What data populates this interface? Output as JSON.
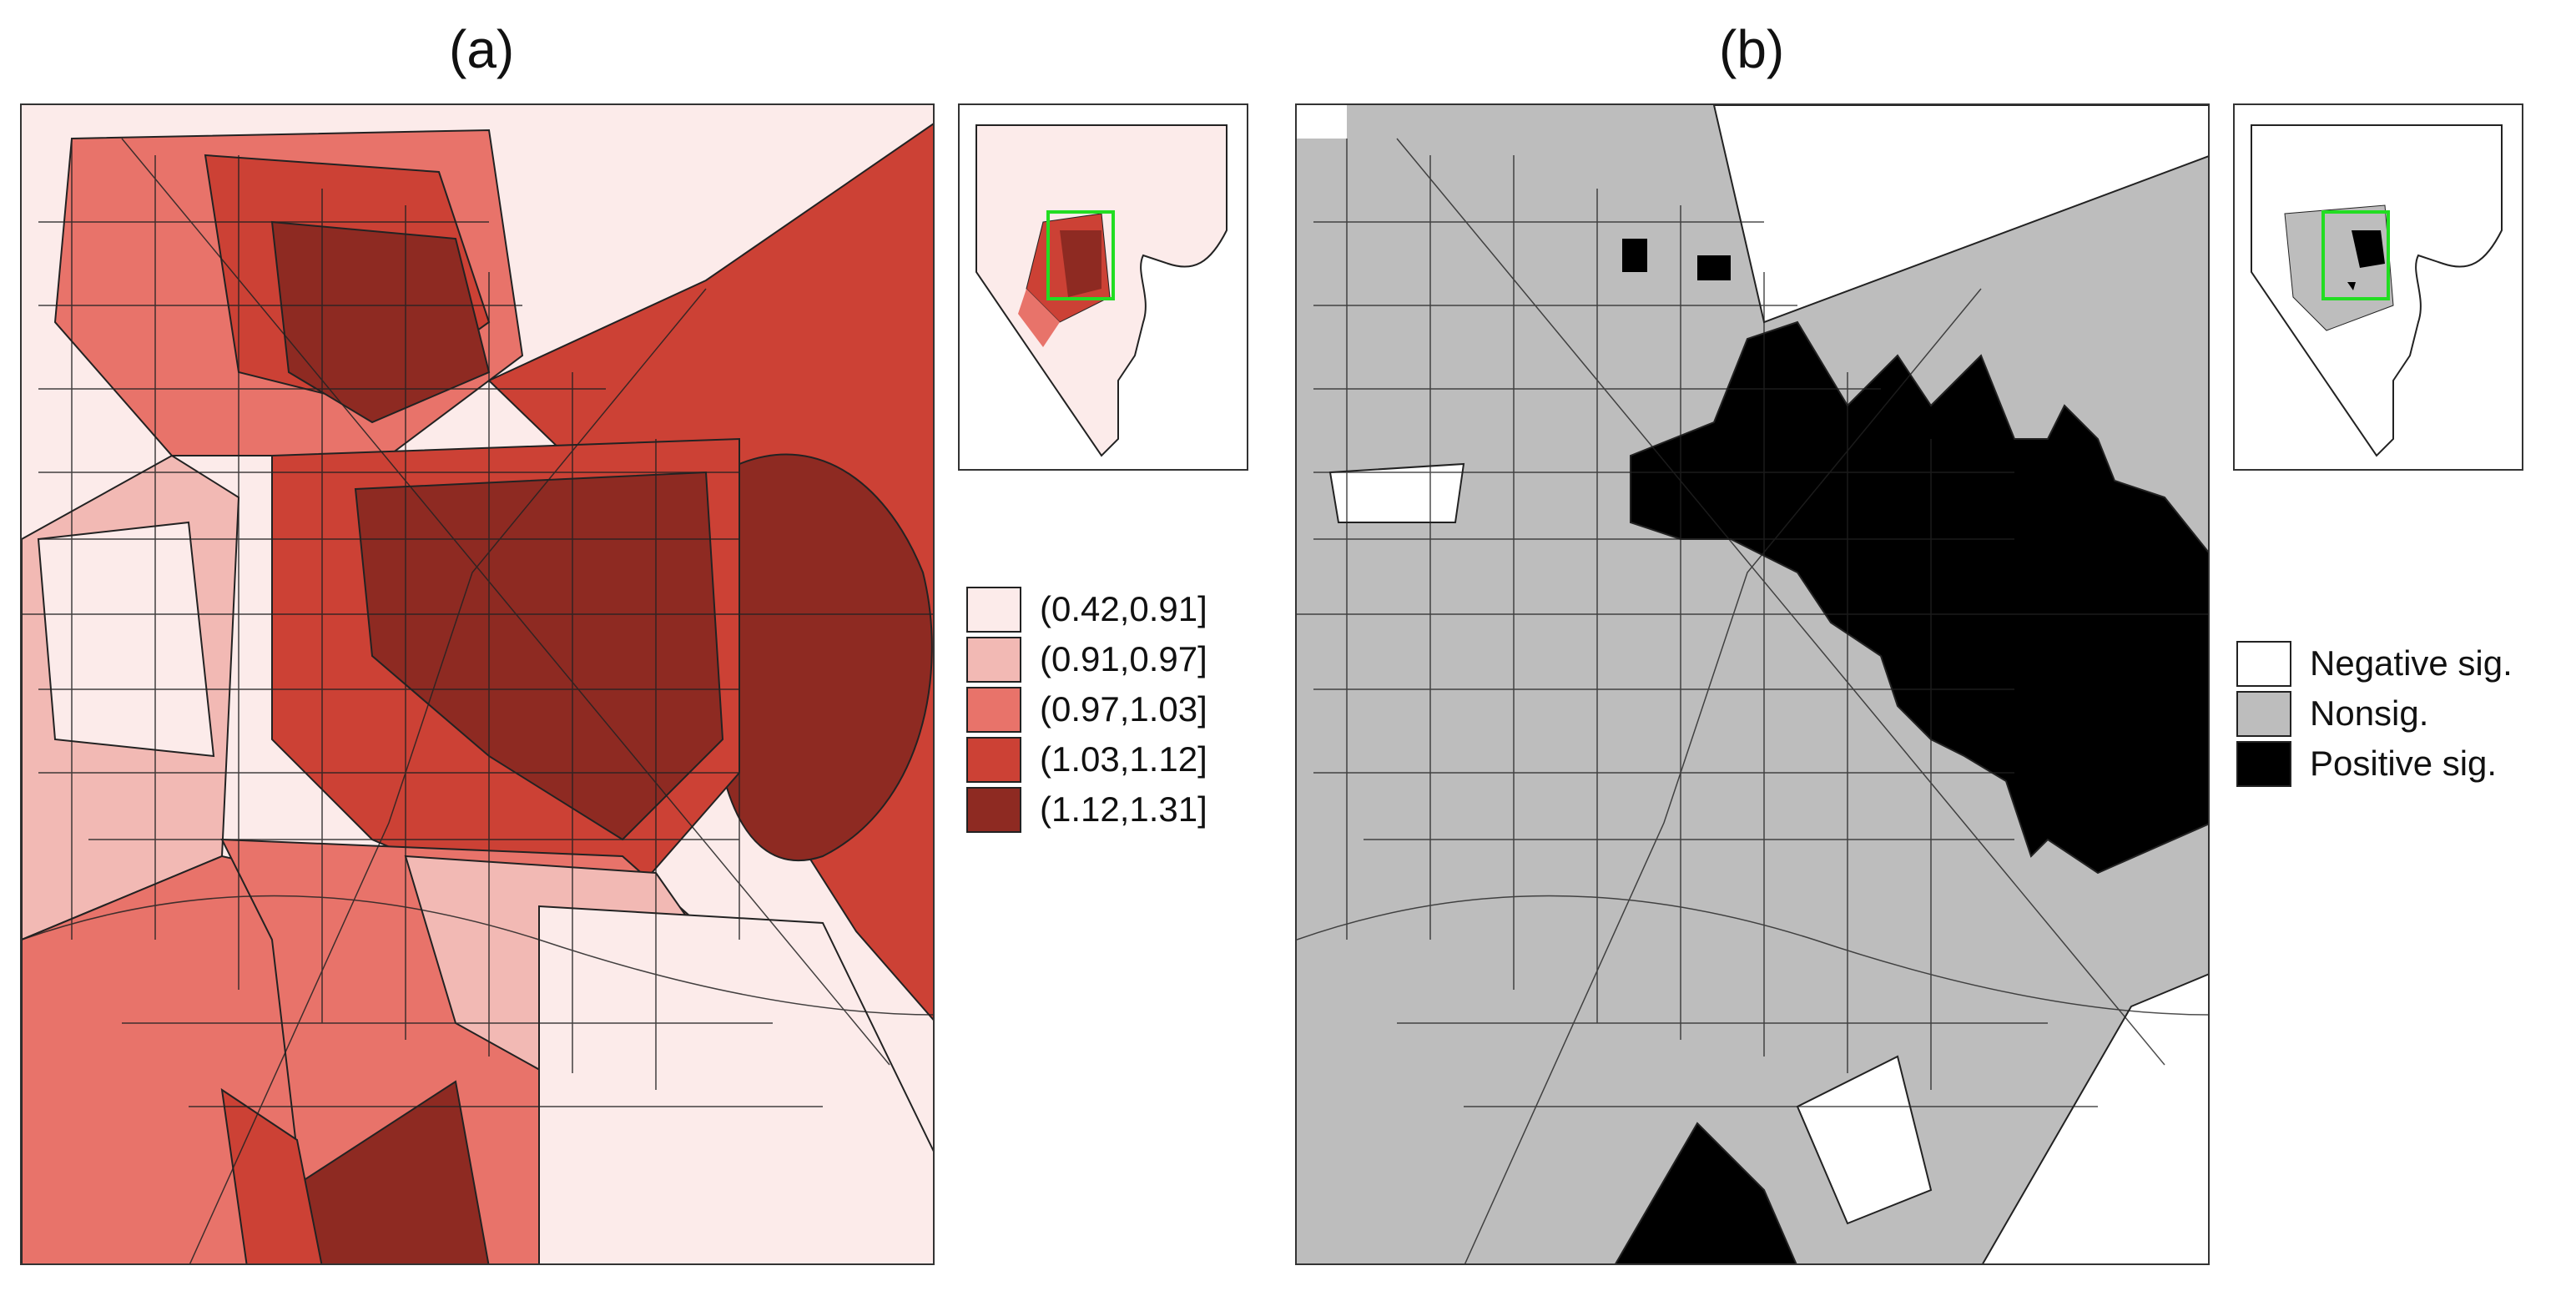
{
  "figure": {
    "panel_a": {
      "label": "(a)"
    },
    "panel_b": {
      "label": "(b)"
    }
  },
  "legend_a": {
    "items": [
      {
        "label": "(0.42,0.91]",
        "color": "#fcebea"
      },
      {
        "label": "(0.91,0.97]",
        "color": "#f2b9b4"
      },
      {
        "label": "(0.97,1.03]",
        "color": "#e8736a"
      },
      {
        "label": "(1.03,1.12]",
        "color": "#cc4135"
      },
      {
        "label": "(1.12,1.31]",
        "color": "#8e2a22"
      }
    ]
  },
  "legend_b": {
    "items": [
      {
        "label": "Negative sig.",
        "color": "#ffffff"
      },
      {
        "label": "Nonsig.",
        "color": "#bdbdbd"
      },
      {
        "label": "Positive sig.",
        "color": "#000000"
      }
    ]
  },
  "inset": {
    "highlight_color": "#22dd22"
  }
}
